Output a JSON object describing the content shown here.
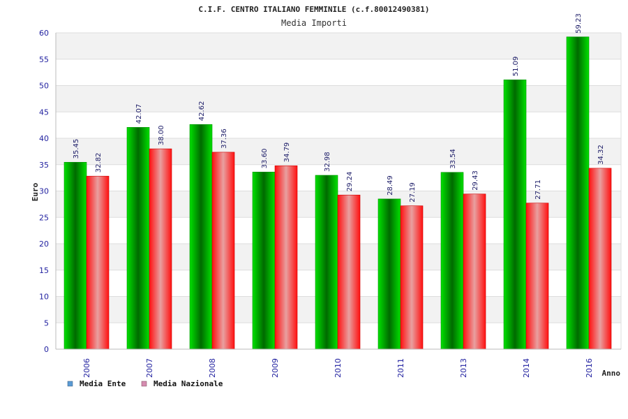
{
  "chart_data": {
    "type": "bar",
    "title": "C.I.F. CENTRO ITALIANO FEMMINILE (c.f.80012490381)",
    "subtitle": "Media Importi",
    "xlabel": "Anno",
    "ylabel": "Euro",
    "ylim": [
      0,
      60
    ],
    "yticks": [
      0,
      5,
      10,
      15,
      20,
      25,
      30,
      35,
      40,
      45,
      50,
      55,
      60
    ],
    "grid": true,
    "legend_position": "bottom-left",
    "categories": [
      "2006",
      "2007",
      "2008",
      "2009",
      "2010",
      "2011",
      "2013",
      "2014",
      "2016"
    ],
    "series": [
      {
        "name": "Media Ente",
        "values": [
          35.45,
          42.07,
          42.62,
          33.6,
          32.98,
          28.49,
          33.54,
          51.09,
          59.23
        ],
        "labels": [
          "35.45",
          "42.07",
          "42.62",
          "33.60",
          "32.98",
          "28.49",
          "33.54",
          "51.09",
          "59.23"
        ],
        "color": "#00b000",
        "legend_color": "#5b9bd5"
      },
      {
        "name": "Media Nazionale",
        "values": [
          32.82,
          38.0,
          37.36,
          34.79,
          29.24,
          27.19,
          29.43,
          27.71,
          34.32
        ],
        "labels": [
          "32.82",
          "38.00",
          "37.36",
          "34.79",
          "29.24",
          "27.19",
          "29.43",
          "27.71",
          "34.32"
        ],
        "color": "#ee1111",
        "legend_color": "#d58cb0"
      }
    ]
  }
}
